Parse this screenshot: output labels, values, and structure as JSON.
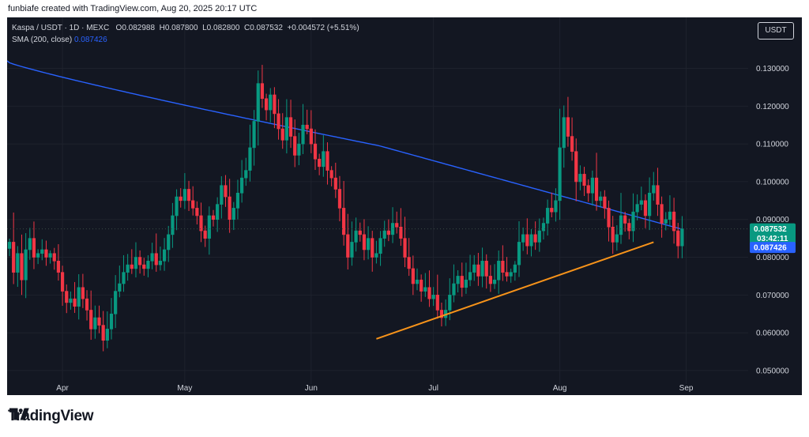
{
  "caption": "funbiafe created with TradingView.com, Aug 20, 2025 20:17 UTC",
  "legend": {
    "symbol": "Kaspa / USDT · 1D · MEXC",
    "o_label": "O",
    "o_value": "0.082988",
    "h_label": "H",
    "h_value": "0.087800",
    "l_label": "L",
    "l_value": "0.082800",
    "c_label": "C",
    "c_value": "0.087532",
    "change": "+0.004572 (+5.51%)",
    "sma_label": "SMA (200, close)",
    "sma_value": "0.087426"
  },
  "currency_button": "USDT",
  "footer_brand": "TradingView",
  "colors": {
    "background": "#131722",
    "up": "#089981",
    "down": "#f23645",
    "sma": "#2962ff",
    "trendline": "#f7931a",
    "text": "#d1d4dc"
  },
  "chart_data": {
    "type": "candlestick",
    "title": "Kaspa / USDT · 1D · MEXC",
    "x_ticks": [
      "Apr",
      "May",
      "Jun",
      "Jul",
      "Aug",
      "Sep"
    ],
    "y_ticks": [
      "0.130000",
      "0.120000",
      "0.110000",
      "0.100000",
      "0.090000",
      "0.080000",
      "0.070000",
      "0.060000",
      "0.050000"
    ],
    "y_tick_values": [
      0.13,
      0.12,
      0.11,
      0.1,
      0.09,
      0.08,
      0.07,
      0.06,
      0.05
    ],
    "ylim": [
      0.0435,
      0.1435
    ],
    "x_start": "2025-03-19",
    "last_price": "0.087532",
    "countdown": "03:42:11",
    "sma_price": "0.087426",
    "closes": [
      0.084,
      0.076,
      0.081,
      0.074,
      0.082,
      0.085,
      0.08,
      0.081,
      0.082,
      0.08,
      0.081,
      0.079,
      0.076,
      0.071,
      0.068,
      0.069,
      0.067,
      0.072,
      0.069,
      0.066,
      0.061,
      0.064,
      0.062,
      0.058,
      0.061,
      0.065,
      0.071,
      0.073,
      0.076,
      0.078,
      0.077,
      0.08,
      0.078,
      0.077,
      0.079,
      0.081,
      0.078,
      0.079,
      0.082,
      0.086,
      0.091,
      0.096,
      0.095,
      0.098,
      0.095,
      0.093,
      0.091,
      0.087,
      0.085,
      0.091,
      0.09,
      0.094,
      0.099,
      0.096,
      0.09,
      0.093,
      0.097,
      0.101,
      0.103,
      0.109,
      0.116,
      0.126,
      0.122,
      0.119,
      0.123,
      0.118,
      0.114,
      0.111,
      0.117,
      0.112,
      0.107,
      0.11,
      0.115,
      0.114,
      0.11,
      0.106,
      0.104,
      0.108,
      0.103,
      0.101,
      0.098,
      0.093,
      0.086,
      0.08,
      0.084,
      0.087,
      0.086,
      0.082,
      0.085,
      0.08,
      0.081,
      0.085,
      0.087,
      0.086,
      0.089,
      0.088,
      0.085,
      0.08,
      0.077,
      0.073,
      0.074,
      0.071,
      0.072,
      0.069,
      0.07,
      0.066,
      0.064,
      0.066,
      0.07,
      0.073,
      0.075,
      0.072,
      0.074,
      0.076,
      0.078,
      0.075,
      0.079,
      0.075,
      0.073,
      0.074,
      0.079,
      0.076,
      0.075,
      0.076,
      0.078,
      0.084,
      0.086,
      0.083,
      0.086,
      0.084,
      0.087,
      0.089,
      0.093,
      0.092,
      0.095,
      0.109,
      0.117,
      0.112,
      0.108,
      0.1,
      0.102,
      0.099,
      0.097,
      0.101,
      0.095,
      0.096,
      0.093,
      0.088,
      0.084,
      0.086,
      0.091,
      0.089,
      0.087,
      0.092,
      0.094,
      0.095,
      0.091,
      0.097,
      0.099,
      0.094,
      0.089,
      0.09,
      0.092,
      0.087,
      0.083,
      0.0875
    ]
  }
}
